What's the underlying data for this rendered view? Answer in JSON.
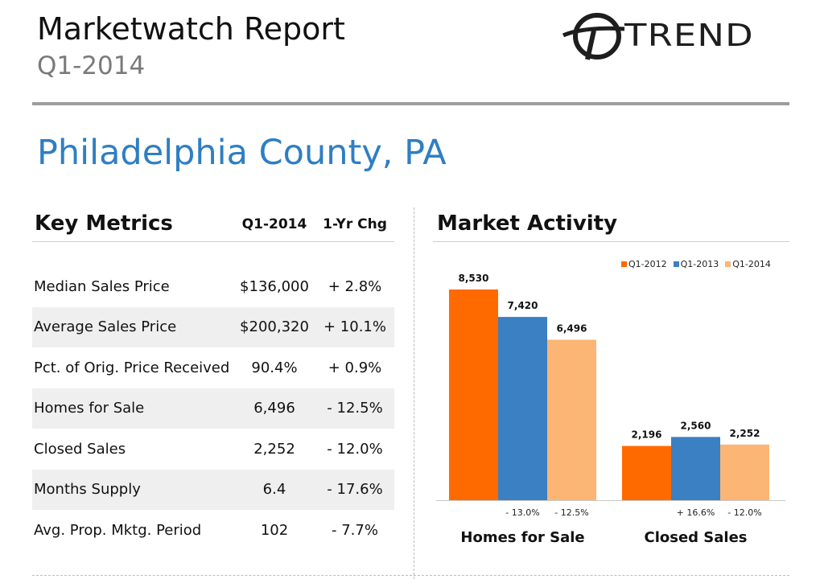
{
  "header": {
    "title": "Marketwatch Report",
    "period": "Q1-2014",
    "logo_text": "TREND"
  },
  "county": "Philadelphia County, PA",
  "key_metrics": {
    "heading": "Key Metrics",
    "col_value": "Q1-2014",
    "col_change": "1-Yr Chg",
    "rows": [
      {
        "label": "Median Sales Price",
        "value": "$136,000",
        "change": "+ 2.8%"
      },
      {
        "label": "Average Sales Price",
        "value": "$200,320",
        "change": "+ 10.1%"
      },
      {
        "label": "Pct. of Orig. Price Received",
        "value": "90.4%",
        "change": "+ 0.9%"
      },
      {
        "label": "Homes for Sale",
        "value": "6,496",
        "change": "- 12.5%"
      },
      {
        "label": "Closed Sales",
        "value": "2,252",
        "change": "- 12.0%"
      },
      {
        "label": "Months Supply",
        "value": "6.4",
        "change": "- 17.6%"
      },
      {
        "label": "Avg. Prop. Mktg. Period",
        "value": "102",
        "change": "- 7.7%"
      }
    ]
  },
  "market_activity": {
    "heading": "Market Activity"
  },
  "chart_data": {
    "type": "bar",
    "title": "Market Activity",
    "categories": [
      "Homes for Sale",
      "Closed Sales"
    ],
    "series": [
      {
        "name": "Q1-2012",
        "color": "#ff6a00",
        "values": [
          8530,
          2196
        ],
        "labels": [
          "8,530",
          "2,196"
        ]
      },
      {
        "name": "Q1-2013",
        "color": "#3a80c3",
        "values": [
          7420,
          2560
        ],
        "labels": [
          "7,420",
          "2,560"
        ]
      },
      {
        "name": "Q1-2014",
        "color": "#fbb574",
        "values": [
          6496,
          2252
        ],
        "labels": [
          "6,496",
          "2,252"
        ]
      }
    ],
    "changes": [
      [
        "- 13.0%",
        "- 12.5%"
      ],
      [
        "+ 16.6%",
        "- 12.0%"
      ]
    ],
    "legend_position": "top-right",
    "ylim": [
      0,
      8530
    ],
    "grid": false
  }
}
